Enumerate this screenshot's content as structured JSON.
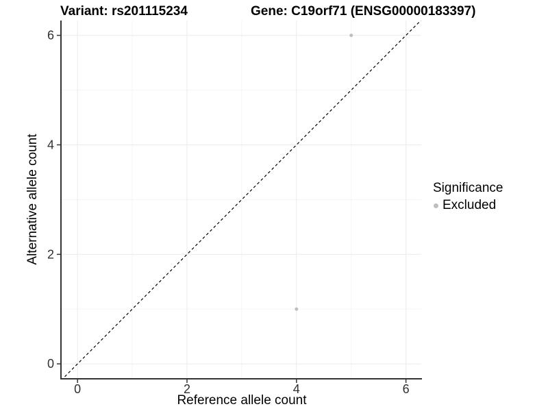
{
  "header": {
    "variant_title": "Variant: rs201115234",
    "gene_title": "Gene: C19orf71 (ENSG00000183397)"
  },
  "legend": {
    "title": "Significance",
    "items": [
      {
        "label": "Excluded",
        "color": "#bebebe",
        "marker": "dot"
      }
    ]
  },
  "chart_data": {
    "type": "scatter",
    "title": "Variant: rs201115234   Gene: C19orf71 (ENSG00000183397)",
    "xlabel": "Reference allele count",
    "ylabel": "Alternative allele count",
    "xlim": [
      -0.29,
      6.28
    ],
    "ylim": [
      -0.26,
      6.27
    ],
    "x_ticks": [
      0,
      2,
      4,
      6
    ],
    "y_ticks": [
      0,
      2,
      4,
      6
    ],
    "x_minor_ticks": [
      1,
      3,
      5
    ],
    "y_minor_ticks": [
      1,
      3,
      5
    ],
    "grid": "major+minor",
    "legend_position": "right",
    "series": [
      {
        "name": "Excluded",
        "color": "#bebebe",
        "marker": "circle",
        "points": [
          {
            "x": 5,
            "y": 6
          },
          {
            "x": 4,
            "y": 1
          }
        ]
      }
    ],
    "reference_line": {
      "type": "identity",
      "style": "dashed",
      "color": "#000000",
      "x1": -0.3,
      "y1": -0.3,
      "x2": 6.35,
      "y2": 6.35
    },
    "style": {
      "grid_major": "#ebebeb",
      "grid_minor": "#f5f5f5",
      "axis_line": "#333333",
      "tick_mark": "#333333",
      "tick_text": "#303030",
      "point_radius": 2.5,
      "tick_font_size": 18
    }
  }
}
